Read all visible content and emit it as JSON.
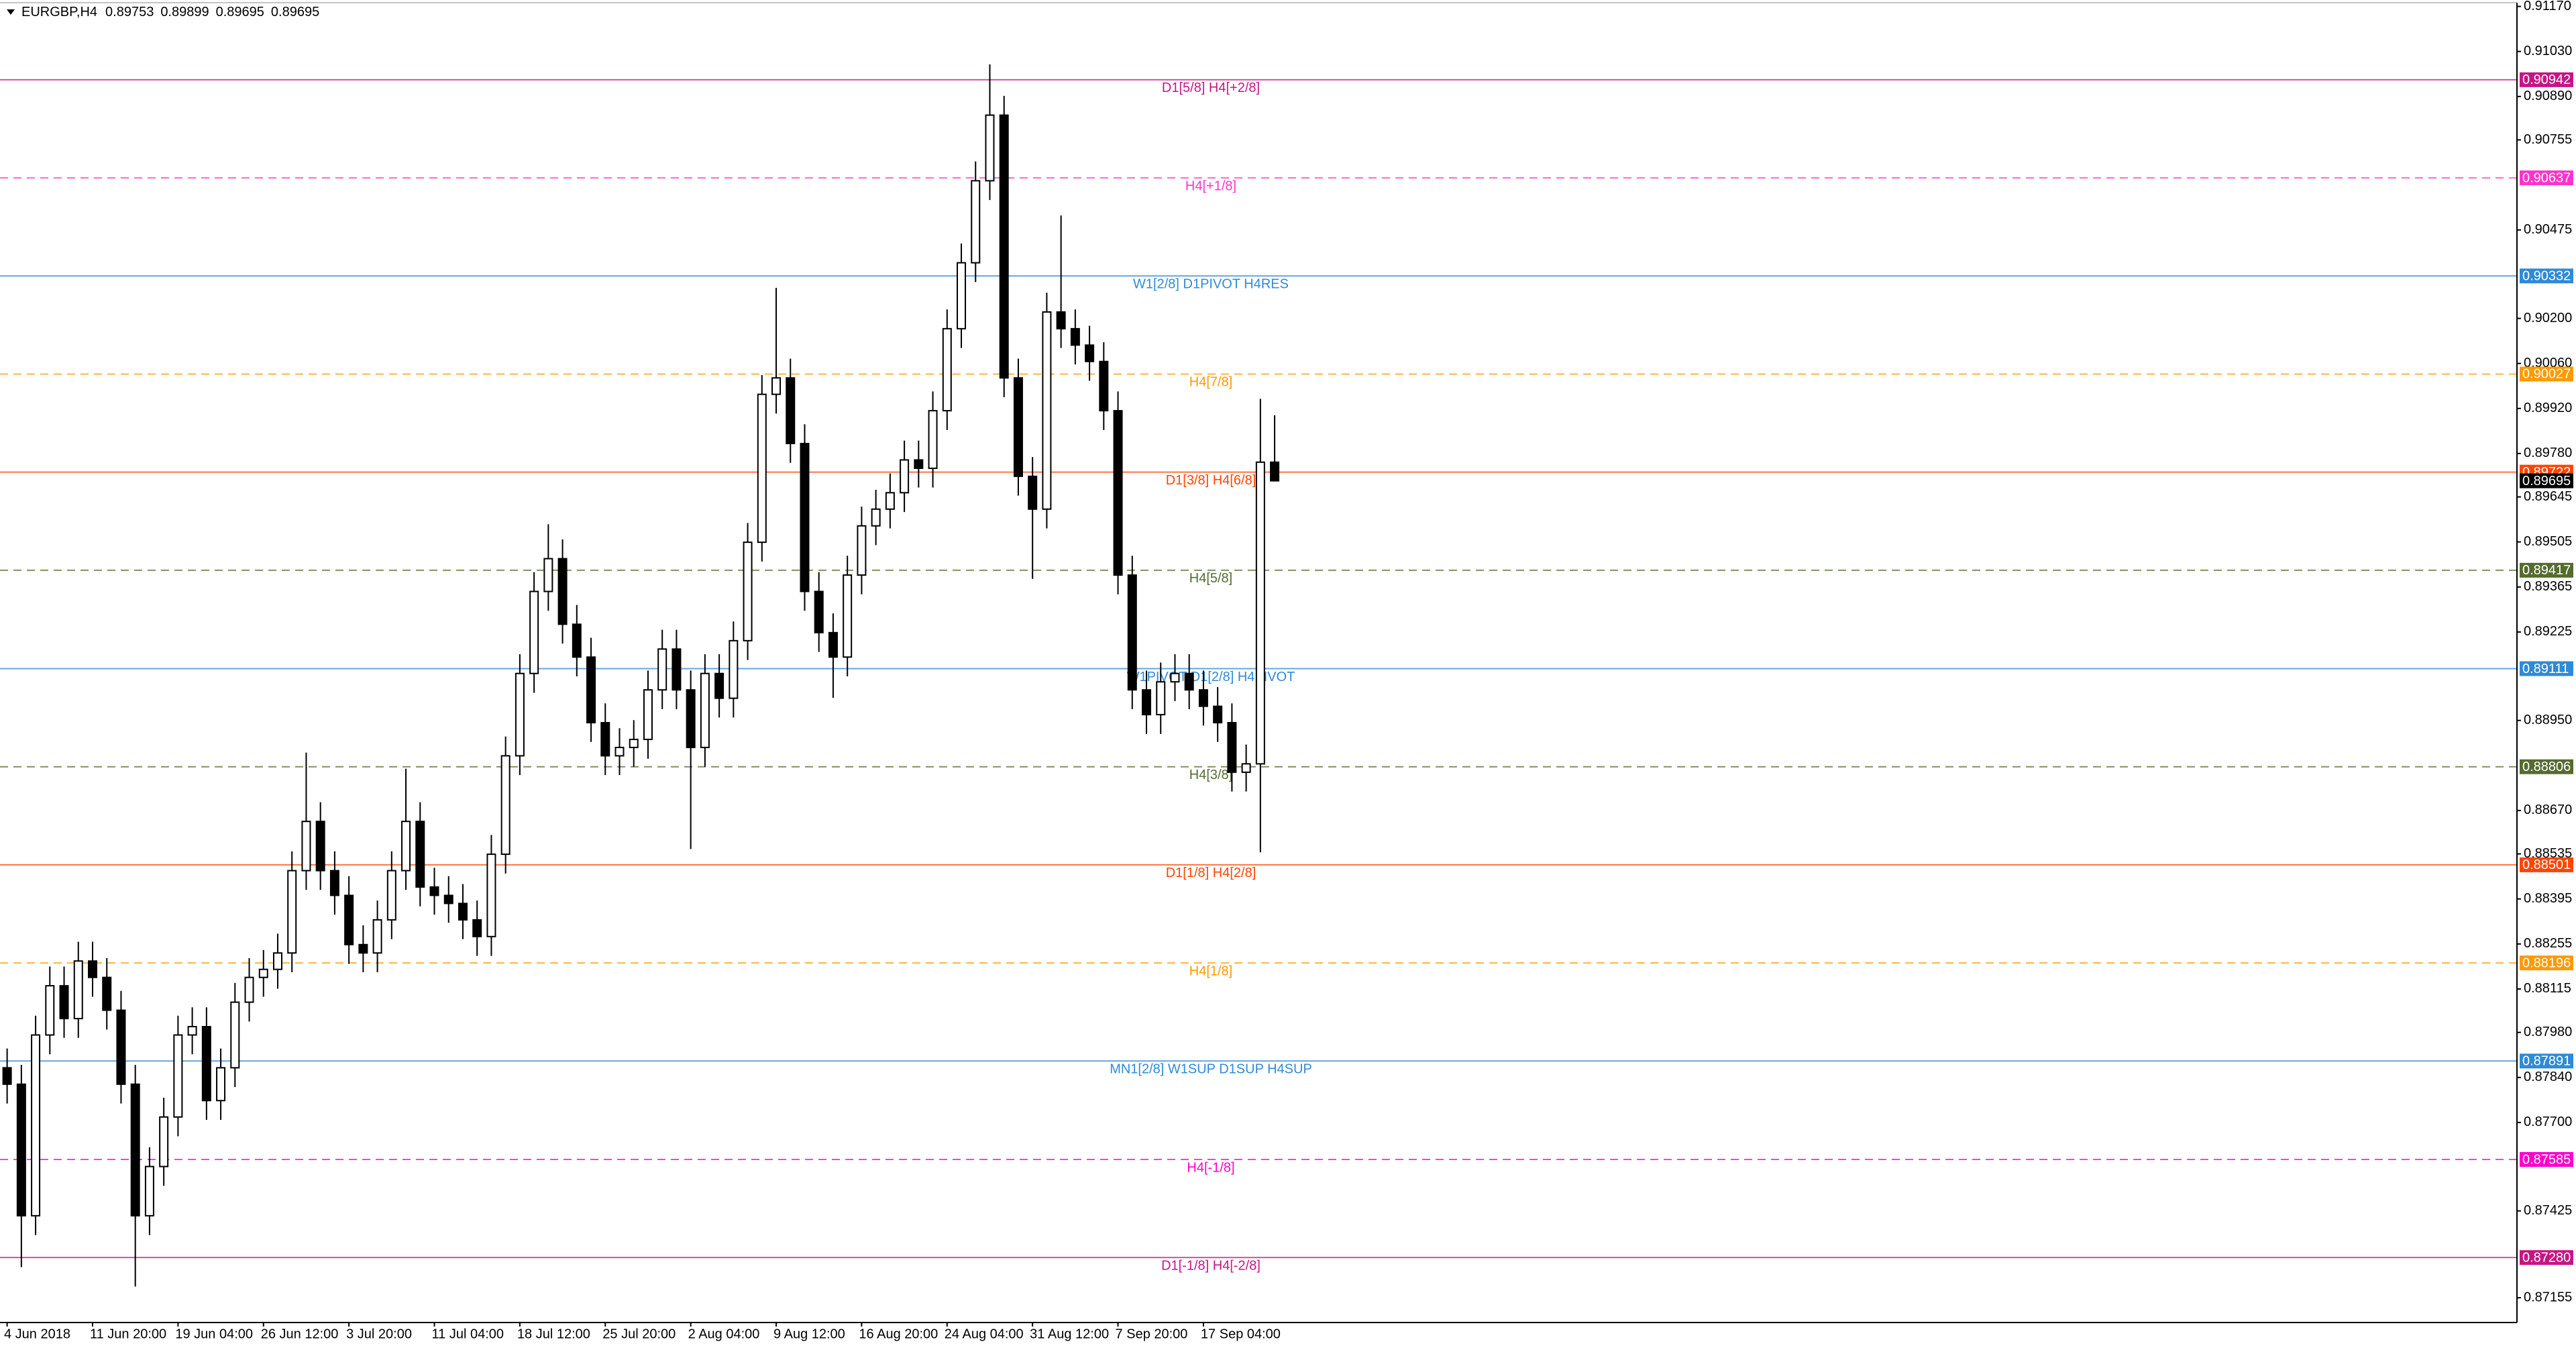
{
  "chart_data": {
    "type": "candlestick",
    "symbol": "EURGBP,H4",
    "categories": [
      "4 Jun 2018",
      null,
      null,
      null,
      null,
      null,
      "11 Jun 20:00",
      null,
      null,
      null,
      null,
      null,
      "19 Jun 04:00",
      null,
      null,
      null,
      null,
      null,
      "26 Jun 12:00",
      null,
      null,
      null,
      null,
      null,
      "3 Jul 20:00",
      null,
      null,
      null,
      null,
      null,
      "11 Jul 04:00",
      null,
      null,
      null,
      null,
      null,
      "18 Jul 12:00",
      null,
      null,
      null,
      null,
      null,
      "25 Jul 20:00",
      null,
      null,
      null,
      null,
      null,
      "2 Aug 04:00",
      null,
      null,
      null,
      null,
      null,
      "9 Aug 12:00",
      null,
      null,
      null,
      null,
      null,
      "16 Aug 20:00",
      null,
      null,
      null,
      null,
      null,
      "24 Aug 04:00",
      null,
      null,
      null,
      null,
      null,
      "31 Aug 12:00",
      null,
      null,
      null,
      null,
      null,
      "7 Sep 20:00",
      null,
      null,
      null,
      null,
      null,
      "17 Sep 04:00",
      null,
      null,
      null,
      null,
      null
    ],
    "open": [
      0.8787,
      0.87819,
      0.8741,
      0.87972,
      0.88125,
      0.88023,
      0.88202,
      0.88151,
      0.88049,
      0.87819,
      0.8741,
      0.87563,
      0.87717,
      0.87972,
      0.87998,
      0.87768,
      0.8787,
      0.88074,
      0.88151,
      0.88176,
      0.88227,
      0.88483,
      0.88636,
      0.88483,
      0.88406,
      0.88253,
      0.88227,
      0.8833,
      0.88483,
      0.88636,
      0.88432,
      0.88406,
      0.88381,
      0.8833,
      0.88278,
      0.88534,
      0.8884,
      0.89096,
      0.89351,
      0.89453,
      0.89249,
      0.89147,
      0.88943,
      0.8884,
      0.88866,
      0.88891,
      0.89045,
      0.89172,
      0.89045,
      0.88866,
      0.89096,
      0.89019,
      0.89198,
      0.89504,
      0.89964,
      0.90015,
      0.89811,
      0.89351,
      0.89223,
      0.89147,
      0.89402,
      0.89555,
      0.89607,
      0.89658,
      0.8976,
      0.89734,
      0.89913,
      0.90168,
      0.90373,
      0.90628,
      0.90832,
      0.90015,
      0.89709,
      0.89607,
      0.9022,
      0.90168,
      0.90117,
      0.90066,
      0.89913,
      0.89402,
      0.89045,
      0.88968,
      0.8907,
      0.89096,
      0.89045,
      0.88994,
      0.88943,
      0.88789,
      0.88815,
      0.89753
    ],
    "high": [
      0.8793,
      0.87879,
      0.88032,
      0.88185,
      0.88185,
      0.88262,
      0.88262,
      0.88211,
      0.88109,
      0.87879,
      0.87623,
      0.87777,
      0.88032,
      0.88058,
      0.88058,
      0.8793,
      0.88134,
      0.88211,
      0.88236,
      0.88287,
      0.88543,
      0.8885,
      0.88696,
      0.88543,
      0.88466,
      0.88313,
      0.8839,
      0.88543,
      0.888,
      0.88696,
      0.88492,
      0.88466,
      0.88441,
      0.8839,
      0.88594,
      0.889,
      0.89156,
      0.89411,
      0.8956,
      0.89513,
      0.89309,
      0.89207,
      0.89003,
      0.88926,
      0.88951,
      0.89105,
      0.89232,
      0.89232,
      0.89105,
      0.89156,
      0.89156,
      0.89258,
      0.89564,
      0.90024,
      0.90295,
      0.90075,
      0.89871,
      0.89411,
      0.89283,
      0.89462,
      0.89615,
      0.89667,
      0.89718,
      0.8982,
      0.8982,
      0.89973,
      0.90228,
      0.90433,
      0.90688,
      0.9099,
      0.90892,
      0.90075,
      0.89769,
      0.9028,
      0.9052,
      0.90228,
      0.90177,
      0.90126,
      0.89973,
      0.89462,
      0.89105,
      0.8913,
      0.89156,
      0.89156,
      0.89105,
      0.89054,
      0.89003,
      0.88875,
      0.8995,
      0.89899
    ],
    "low": [
      0.87759,
      0.8725,
      0.8735,
      0.87912,
      0.87963,
      0.87963,
      0.88091,
      0.87989,
      0.87759,
      0.8719,
      0.8735,
      0.87503,
      0.87657,
      0.87912,
      0.87708,
      0.87708,
      0.8781,
      0.88014,
      0.88091,
      0.88116,
      0.88167,
      0.88423,
      0.88423,
      0.88346,
      0.88193,
      0.88167,
      0.88167,
      0.8827,
      0.88423,
      0.88372,
      0.88346,
      0.88321,
      0.8827,
      0.88218,
      0.88218,
      0.88474,
      0.8878,
      0.89036,
      0.89291,
      0.89189,
      0.89087,
      0.88883,
      0.8878,
      0.8878,
      0.88806,
      0.88831,
      0.88985,
      0.88985,
      0.8855,
      0.88806,
      0.88959,
      0.88959,
      0.89138,
      0.89444,
      0.89904,
      0.89751,
      0.89291,
      0.89163,
      0.8902,
      0.89087,
      0.89342,
      0.89495,
      0.89547,
      0.89598,
      0.89674,
      0.89674,
      0.89853,
      0.90108,
      0.90313,
      0.90568,
      0.89955,
      0.89649,
      0.8939,
      0.89547,
      0.90108,
      0.90057,
      0.90006,
      0.89853,
      0.89342,
      0.88985,
      0.88908,
      0.88908,
      0.8901,
      0.88985,
      0.88934,
      0.88883,
      0.88729,
      0.88729,
      0.8854,
      0.89695
    ],
    "close": [
      0.87819,
      0.8741,
      0.87972,
      0.88125,
      0.88023,
      0.88202,
      0.88151,
      0.88049,
      0.87819,
      0.8741,
      0.87563,
      0.87717,
      0.87972,
      0.87998,
      0.87768,
      0.8787,
      0.88074,
      0.88151,
      0.88176,
      0.88227,
      0.88483,
      0.88636,
      0.88483,
      0.88406,
      0.88253,
      0.88227,
      0.8833,
      0.88483,
      0.88636,
      0.88432,
      0.88406,
      0.88381,
      0.8833,
      0.88278,
      0.88534,
      0.8884,
      0.89096,
      0.89351,
      0.89453,
      0.89249,
      0.89147,
      0.88943,
      0.8884,
      0.88866,
      0.88891,
      0.89045,
      0.89172,
      0.89045,
      0.88866,
      0.89096,
      0.89019,
      0.89198,
      0.89504,
      0.89964,
      0.90015,
      0.89811,
      0.89351,
      0.89223,
      0.89147,
      0.89402,
      0.89555,
      0.89607,
      0.89658,
      0.8976,
      0.89734,
      0.89913,
      0.90168,
      0.90373,
      0.90628,
      0.90832,
      0.90015,
      0.89709,
      0.89607,
      0.9022,
      0.90168,
      0.90117,
      0.90066,
      0.89913,
      0.89402,
      0.89045,
      0.88968,
      0.8907,
      0.89096,
      0.89045,
      0.88994,
      0.88943,
      0.88789,
      0.88815,
      0.89753,
      0.89695
    ],
    "up_color": "#ffffff",
    "down_color": "#000000",
    "wick_color": "#000000",
    "current_price_color": "#000000",
    "ylim": [
      0.87078,
      0.9119
    ],
    "yticks": [
      {
        "value": 0.9117,
        "label": "0.91170"
      },
      {
        "value": 0.9103,
        "label": "0.91030"
      },
      {
        "value": 0.9089,
        "label": "0.90890"
      },
      0.90755,
      0.90475,
      {
        "value": 0.902,
        "label": "0.90200"
      },
      {
        "value": 0.9006,
        "label": "0.90060"
      },
      {
        "value": 0.8992,
        "label": "0.89920"
      },
      {
        "value": 0.8978,
        "label": "0.89780"
      },
      0.89645,
      0.89505,
      0.89365,
      0.89225,
      {
        "value": 0.8895,
        "label": "0.88950"
      },
      {
        "value": 0.8867,
        "label": "0.88670"
      },
      0.88535,
      0.88395,
      0.88255,
      0.88115,
      {
        "value": 0.8798,
        "label": "0.87980"
      },
      {
        "value": 0.8784,
        "label": "0.87840"
      },
      {
        "value": 0.877,
        "label": "0.87700"
      },
      0.87425,
      0.87155
    ],
    "grid": false,
    "levels": {
      "values": [
        0.90942,
        0.90637,
        0.90332,
        0.90027,
        0.89722,
        0.89417,
        0.89111,
        0.88806,
        0.88501,
        0.88196,
        0.87891,
        0.87585,
        0.8728
      ],
      "value_labels": [
        "0.90942",
        "0.90637",
        "0.90332",
        "0.90027",
        "0.89722",
        "0.89417",
        "0.89111",
        "0.88806",
        "0.88501",
        "0.88196",
        "0.87891",
        "0.87585",
        "0.87280"
      ],
      "names": [
        "D1[5/8] H4[+2/8]",
        "H4[+1/8]",
        "W1[2/8] D1PIVOT H4RES",
        "H4[7/8]",
        "D1[3/8] H4[6/8]",
        "H4[5/8]",
        "W1PIVOT D1[2/8] H4PIVOT",
        "H4[3/8]",
        "D1[1/8] H4[2/8]",
        "H4[1/8]",
        "MN1[2/8] W1SUP D1SUP H4SUP",
        "H4[-1/8]",
        "D1[-1/8] H4[-2/8]"
      ],
      "colors": [
        "#c71585",
        "#ff33cc",
        "#2f8ad8",
        "#ff9900",
        "#ff4500",
        "#556b2f",
        "#2f8ad8",
        "#556b2f",
        "#ff4500",
        "#ff9900",
        "#2f8ad8",
        "#ff00cc",
        "#c71585"
      ],
      "styles": [
        "solid",
        "dashed",
        "solid",
        "dashed",
        "solid",
        "dashed",
        "solid",
        "dashed",
        "solid",
        "dashed",
        "solid",
        "dashed",
        "solid"
      ]
    }
  }
}
